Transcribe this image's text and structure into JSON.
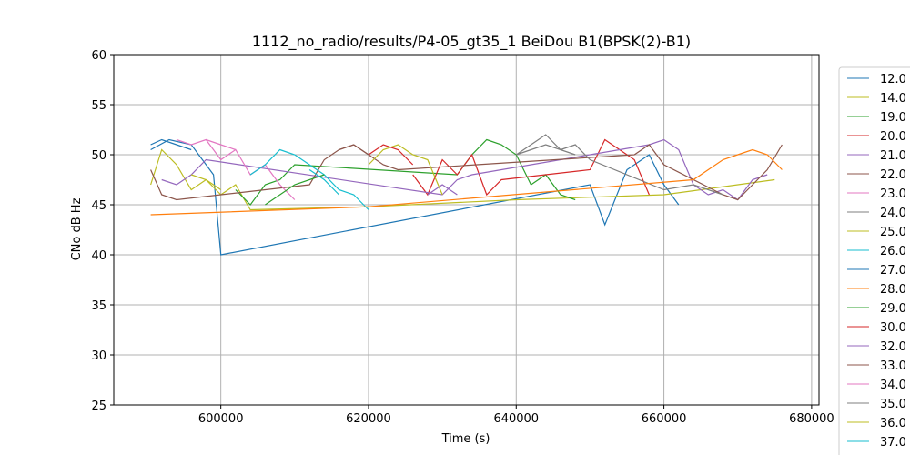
{
  "chart_data": {
    "type": "line",
    "title": "1112_no_radio/results/P4-05_gt35_1 BeiDou B1(BPSK(2)-B1)",
    "xlabel": "Time (s)",
    "ylabel": "CNo dB Hz",
    "xlim": [
      585500,
      681000
    ],
    "ylim": [
      25,
      60
    ],
    "x_ticks": [
      600000,
      620000,
      640000,
      660000,
      680000
    ],
    "x_tick_labels": [
      "600000",
      "620000",
      "640000",
      "660000",
      "680000"
    ],
    "y_ticks": [
      25,
      30,
      35,
      40,
      45,
      50,
      55,
      60
    ],
    "y_tick_labels": [
      "25",
      "30",
      "35",
      "40",
      "45",
      "50",
      "55",
      "60"
    ],
    "grid": true,
    "legend_position": "right, outside plot",
    "series": [
      {
        "name": "12.0",
        "color": "#1f77b4",
        "x": [
          590500,
          593000,
          596000,
          599000,
          600000,
          650000,
          652000,
          655000,
          658000,
          660000,
          662000
        ],
        "y": [
          50.5,
          51.5,
          51,
          48,
          40,
          47,
          43,
          48.5,
          50,
          47,
          45
        ]
      },
      {
        "name": "14.0",
        "color": "#bcbd22",
        "x": [
          590500,
          592000,
          594000,
          596000,
          598000,
          600000,
          602000,
          604000,
          620000,
          640000,
          660000,
          675000
        ],
        "y": [
          47,
          50.5,
          49,
          46.5,
          47.5,
          46,
          47,
          44.5,
          44.8,
          45.5,
          46,
          47.5
        ]
      },
      {
        "name": "19.0",
        "color": "#2ca02c",
        "x": [
          602000,
          604000,
          606000,
          608000,
          610000,
          632000,
          634000,
          636000,
          638000,
          640000,
          642000,
          644000,
          646000,
          648000
        ],
        "y": [
          46.5,
          45,
          47,
          47.5,
          49,
          48,
          50,
          51.5,
          51,
          50,
          47,
          48,
          46,
          45.5
        ]
      },
      {
        "name": "20.0",
        "color": "#d62728",
        "x": [
          626000,
          628000,
          630000,
          632000,
          634000,
          636000,
          638000,
          650000,
          652000,
          654000,
          656000,
          658000
        ],
        "y": [
          48,
          46,
          49.5,
          48,
          50,
          46,
          47.5,
          48.5,
          51.5,
          50.5,
          49.5,
          46
        ]
      },
      {
        "name": "21.0",
        "color": "#9467bd",
        "x": [
          592000,
          594000,
          596000,
          598000,
          630000,
          632000,
          634000,
          658000,
          660000,
          662000,
          664000,
          666000,
          668000,
          670000,
          672000,
          674000
        ],
        "y": [
          47.5,
          47,
          48,
          49.5,
          46,
          47.5,
          48,
          51,
          51.5,
          50.5,
          47,
          46,
          46.5,
          45.5,
          47.5,
          48
        ]
      },
      {
        "name": "22.0",
        "color": "#8c564b",
        "x": [
          590500,
          592000,
          594000,
          612000,
          614000,
          616000,
          618000,
          620000,
          622000,
          624000,
          656000,
          658000,
          660000,
          668000,
          670000,
          672000,
          674000,
          676000
        ],
        "y": [
          48.5,
          46,
          45.5,
          47,
          49.5,
          50.5,
          51,
          50,
          49,
          48.5,
          50,
          51,
          49,
          46,
          45.5,
          47,
          48.5,
          51
        ]
      },
      {
        "name": "23.0",
        "color": "#e377c2",
        "x": [
          594000,
          596000,
          598000,
          600000,
          602000,
          604000,
          606000,
          608000,
          610000
        ],
        "y": [
          51.5,
          51,
          51.5,
          49.5,
          50.5,
          48,
          49,
          47,
          45.5
        ]
      },
      {
        "name": "24.0",
        "color": "#7f7f7f",
        "x": [
          640000,
          642000,
          644000,
          646000,
          648000,
          650000,
          660000,
          664000,
          668000
        ],
        "y": [
          50,
          51,
          52,
          50.5,
          51,
          49.5,
          46.5,
          47,
          46
        ]
      },
      {
        "name": "25.0",
        "color": "#bcbd22",
        "x": [
          620000,
          622000,
          624000,
          626000,
          628000,
          630000
        ],
        "y": [
          49,
          50.5,
          51,
          50,
          49.5,
          46
        ]
      },
      {
        "name": "26.0",
        "color": "#17becf",
        "x": [
          604000,
          606000,
          608000,
          610000,
          612000,
          614000,
          616000,
          618000,
          620000
        ],
        "y": [
          48,
          49,
          50.5,
          50,
          49,
          48,
          46.5,
          46,
          44.5
        ]
      },
      {
        "name": "27.0",
        "color": "#1f77b4",
        "x": [
          590500,
          592000,
          594000,
          596000
        ],
        "y": [
          51,
          51.5,
          51,
          50.5
        ]
      },
      {
        "name": "28.0",
        "color": "#ff7f0e",
        "x": [
          590500,
          620000,
          664000,
          666000,
          668000,
          670000,
          672000,
          674000,
          676000
        ],
        "y": [
          44,
          44.8,
          47.5,
          48.5,
          49.5,
          50,
          50.5,
          50,
          48.5
        ]
      },
      {
        "name": "29.0",
        "color": "#2ca02c",
        "x": [
          606000,
          610000,
          614000
        ],
        "y": [
          45,
          47,
          48
        ]
      },
      {
        "name": "30.0",
        "color": "#d62728",
        "x": [
          620000,
          622000,
          624000,
          626000
        ],
        "y": [
          50,
          51,
          50.5,
          49
        ]
      },
      {
        "name": "32.0",
        "color": "#9467bd",
        "x": [
          628000,
          630000,
          632000
        ],
        "y": [
          46,
          47,
          46
        ]
      },
      {
        "name": "33.0",
        "color": "#8c564b",
        "x": [
          616000,
          618000,
          620000
        ],
        "y": [
          50.5,
          51,
          50
        ]
      },
      {
        "name": "34.0",
        "color": "#e377c2",
        "x": [
          598000,
          600000,
          602000
        ],
        "y": [
          51.5,
          51,
          50.5
        ]
      },
      {
        "name": "35.0",
        "color": "#7f7f7f",
        "x": [
          640000,
          642000,
          644000,
          646000,
          648000
        ],
        "y": [
          50,
          50.5,
          51,
          50.5,
          50
        ]
      },
      {
        "name": "36.0",
        "color": "#bcbd22",
        "x": [
          596000,
          598000,
          600000
        ],
        "y": [
          48,
          47.5,
          46.5
        ]
      },
      {
        "name": "37.0",
        "color": "#17becf",
        "x": [
          612000,
          614000,
          616000
        ],
        "y": [
          48.5,
          47.5,
          46
        ]
      }
    ]
  }
}
